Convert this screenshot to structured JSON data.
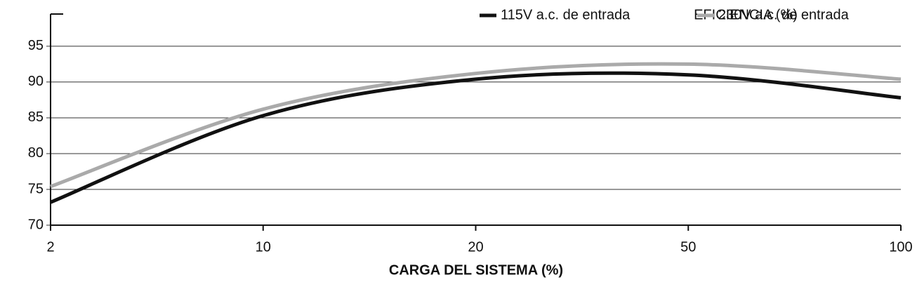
{
  "chart_data": {
    "type": "line",
    "title": "EFICIENCIA (%)",
    "x_label": "CARGA DEL SISTEMA (%)",
    "categories": [
      "2",
      "10",
      "20",
      "50",
      "100"
    ],
    "series": [
      {
        "name": "115V a.c. de entrada",
        "color": "#111111",
        "values": [
          73.2,
          85.3,
          90.4,
          91.0,
          87.8
        ]
      },
      {
        "name": "230V a.c. de entrada",
        "color": "#aaaaaa",
        "values": [
          75.4,
          86.2,
          91.2,
          92.5,
          90.4
        ]
      }
    ],
    "ylim": [
      70,
      99.5
    ],
    "yticks": [
      70,
      75,
      80,
      85,
      90,
      95
    ],
    "grid": true
  }
}
